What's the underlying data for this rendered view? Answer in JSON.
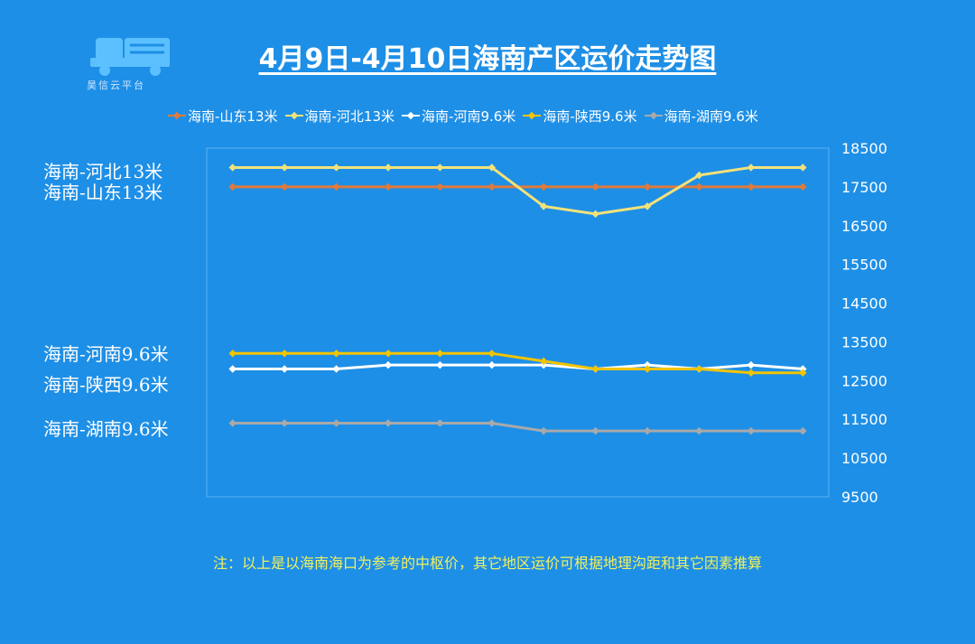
{
  "logo": {
    "text": "昊信云平台"
  },
  "chart_data": {
    "type": "line",
    "title": "4月9日-4月10日海南产区运价走势图",
    "xlabel": "",
    "ylabel": "",
    "ylim": [
      9500,
      18500
    ],
    "yticks": [
      9500,
      10500,
      11500,
      12500,
      13500,
      14500,
      15500,
      16500,
      17500,
      18500
    ],
    "x": [
      1,
      2,
      3,
      4,
      5,
      6,
      7,
      8,
      9,
      10,
      11,
      12
    ],
    "legend_position": "top",
    "series": [
      {
        "name": "海南-山东13米",
        "color": "#e07a3a",
        "values": [
          17500,
          17500,
          17500,
          17500,
          17500,
          17500,
          17500,
          17500,
          17500,
          17500,
          17500,
          17500
        ]
      },
      {
        "name": "海南-河北13米",
        "color": "#f2e27a",
        "values": [
          18000,
          18000,
          18000,
          18000,
          18000,
          18000,
          17000,
          16800,
          17000,
          17800,
          18000,
          18000
        ]
      },
      {
        "name": "海南-河南9.6米",
        "color": "#ffffff",
        "values": [
          12800,
          12800,
          12800,
          12900,
          12900,
          12900,
          12900,
          12800,
          12900,
          12800,
          12900,
          12800
        ]
      },
      {
        "name": "海南-陕西9.6米",
        "color": "#f2c400",
        "values": [
          13200,
          13200,
          13200,
          13200,
          13200,
          13200,
          13000,
          12800,
          12800,
          12800,
          12700,
          12700
        ]
      },
      {
        "name": "海南-湖南9.6米",
        "color": "#a9a9a9",
        "values": [
          11400,
          11400,
          11400,
          11400,
          11400,
          11400,
          11200,
          11200,
          11200,
          11200,
          11200,
          11200
        ]
      }
    ]
  },
  "side_labels": [
    "海南-河北13米",
    "海南-山东13米",
    "海南-河南9.6米",
    "海南-陕西9.6米",
    "海南-湖南9.6米"
  ],
  "note": "注：以上是以海南海口为参考的中枢价，其它地区运价可根据地理沟距和其它因素推算"
}
